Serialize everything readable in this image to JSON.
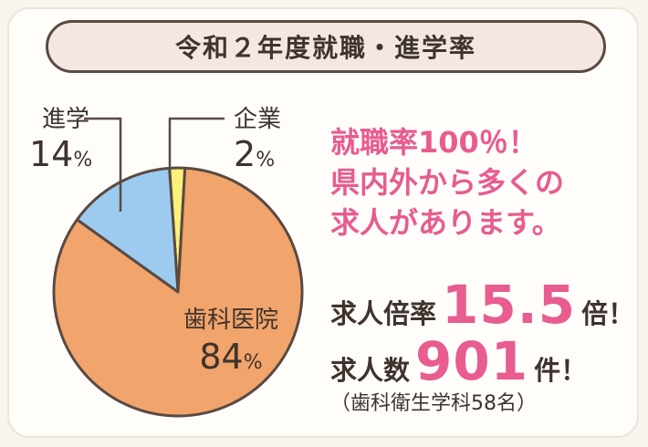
{
  "title": "令和２年度就職・進学率",
  "chart_data": {
    "type": "pie",
    "slices": [
      {
        "label": "歯科医院",
        "value": 84,
        "color": "#f1a46b"
      },
      {
        "label": "進学",
        "value": 14,
        "color": "#9ccbef"
      },
      {
        "label": "企業",
        "value": 2,
        "color": "#faf07a"
      }
    ],
    "unit": "%",
    "title": "令和２年度就職・進学率"
  },
  "labels": {
    "dental": {
      "name": "歯科医院",
      "pct": "84",
      "unit": "%"
    },
    "further": {
      "name": "進学",
      "pct": "14",
      "unit": "%"
    },
    "company": {
      "name": "企業",
      "pct": "2",
      "unit": "%"
    }
  },
  "headline": [
    "就職率100％！",
    "県内外から多くの",
    "求人があります。"
  ],
  "stats": {
    "ratio": {
      "prefix": "求人倍率",
      "value": "15.5",
      "suffix": "倍！"
    },
    "count": {
      "prefix": "求人数",
      "value": "901",
      "suffix": "件！"
    }
  },
  "note": "（歯科衛生学科58名）",
  "colors": {
    "accent": "#e85c90",
    "text": "#3f332d",
    "outline": "#5a4a42"
  }
}
